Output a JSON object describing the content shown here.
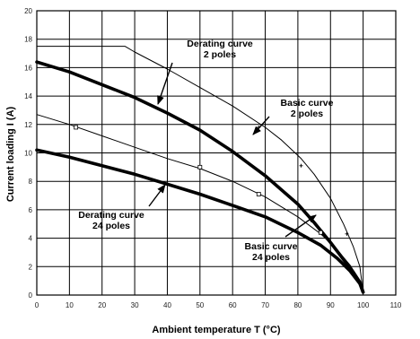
{
  "chart_data": {
    "type": "line",
    "xlabel": "Ambient temperature T (°C)",
    "ylabel": "Current loading I (A)",
    "xlim": [
      0,
      110
    ],
    "ylim": [
      0,
      20
    ],
    "x_ticks": [
      0,
      10,
      20,
      30,
      40,
      50,
      60,
      70,
      80,
      90,
      100,
      110
    ],
    "y_ticks": [
      0,
      2,
      4,
      6,
      8,
      10,
      12,
      14,
      16,
      18,
      20
    ],
    "grid": true,
    "series": [
      {
        "key": "basic-2",
        "style": "thin",
        "marker": "cross",
        "x": [
          0,
          27,
          30,
          40,
          50,
          60,
          70,
          75,
          81,
          85,
          90,
          94,
          97,
          99,
          100
        ],
        "y": [
          17.5,
          17.5,
          17.1,
          15.9,
          14.6,
          13.3,
          11.8,
          10.9,
          9.6,
          8.5,
          6.8,
          5.0,
          3.4,
          2.0,
          0.2
        ],
        "markers_x": [
          68,
          81,
          95
        ],
        "markers_y": [
          11.8,
          9.1,
          4.3
        ]
      },
      {
        "key": "derating-2",
        "style": "thick",
        "marker": "none",
        "x": [
          0,
          10,
          20,
          30,
          40,
          50,
          60,
          70,
          80,
          85,
          90,
          94,
          97,
          99,
          100
        ],
        "y": [
          16.4,
          15.7,
          14.8,
          13.9,
          12.8,
          11.6,
          10.1,
          8.4,
          6.4,
          5.1,
          3.7,
          2.5,
          1.6,
          0.9,
          0.2
        ],
        "markers_x": [],
        "markers_y": []
      },
      {
        "key": "basic-24",
        "style": "thin",
        "marker": "square",
        "x": [
          0,
          10,
          20,
          30,
          40,
          50,
          60,
          70,
          80,
          87,
          92,
          96,
          99,
          100
        ],
        "y": [
          12.7,
          12.0,
          11.2,
          10.4,
          9.6,
          8.9,
          8.0,
          6.9,
          5.5,
          4.3,
          3.2,
          2.1,
          1.0,
          0.3
        ],
        "markers_x": [
          12,
          50,
          68,
          87
        ],
        "markers_y": [
          11.8,
          9.0,
          7.1,
          4.4
        ]
      },
      {
        "key": "derating-24",
        "style": "thick",
        "marker": "none",
        "x": [
          0,
          10,
          20,
          30,
          40,
          50,
          60,
          70,
          80,
          87,
          92,
          96,
          99,
          100
        ],
        "y": [
          10.2,
          9.7,
          9.1,
          8.5,
          7.8,
          7.1,
          6.3,
          5.5,
          4.4,
          3.5,
          2.6,
          1.7,
          0.8,
          0.2
        ],
        "markers_x": [],
        "markers_y": []
      }
    ],
    "annotations": [
      {
        "key": "derating-2",
        "lines": [
          "Derating curve",
          "2 poles"
        ]
      },
      {
        "key": "basic-2",
        "lines": [
          "Basic curve",
          "2 poles"
        ]
      },
      {
        "key": "derating-24",
        "lines": [
          "Derating curve",
          "24 poles"
        ]
      },
      {
        "key": "basic-24",
        "lines": [
          "Basic curve",
          "24 poles"
        ]
      }
    ]
  }
}
